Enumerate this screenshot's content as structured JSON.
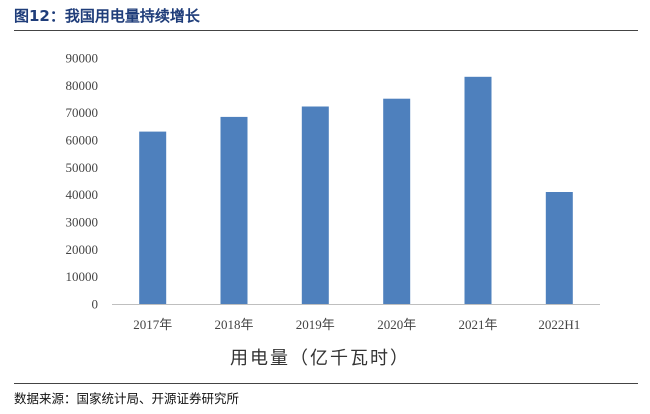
{
  "figure": {
    "title": "图12：我国用电量持续增长",
    "source": "数据来源：国家统计局、开源证券研究所"
  },
  "colors": {
    "bar": "#4e80bd",
    "title": "#1f3d7a",
    "axis": "#bfbfbf"
  },
  "chart_data": {
    "type": "bar",
    "categories": [
      "2017年",
      "2018年",
      "2019年",
      "2020年",
      "2021年",
      "2022H1"
    ],
    "values": [
      63077,
      68449,
      72255,
      75110,
      83128,
      40977
    ],
    "xlabel": "用电量（亿千瓦时）",
    "ylabel": "",
    "ylim": [
      0,
      90000
    ],
    "yticks": [
      0,
      10000,
      20000,
      30000,
      40000,
      50000,
      60000,
      70000,
      80000,
      90000
    ],
    "grid": false,
    "legend": "none"
  }
}
